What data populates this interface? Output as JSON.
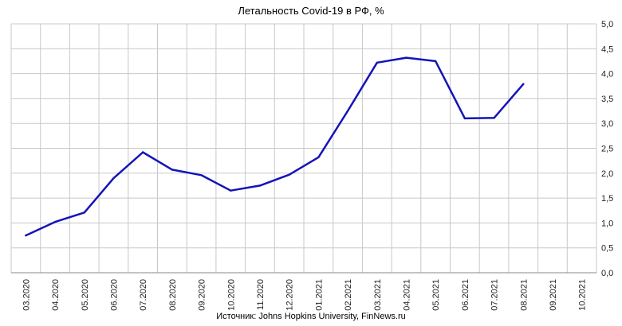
{
  "title": "Летальность Covid-19 в РФ, %",
  "source": "Источник: Johns Hopkins University, FinNews.ru",
  "colors": {
    "line": "#1414b8",
    "grid": "#c8c8c8",
    "axis": "#888888"
  },
  "chart_data": {
    "type": "line",
    "title": "Летальность Covid-19 в РФ, %",
    "categories": [
      "03.2020",
      "04.2020",
      "05.2020",
      "06.2020",
      "07.2020",
      "08.2020",
      "09.2020",
      "10.2020",
      "11.2020",
      "12.2020",
      "01.2021",
      "02.2021",
      "03.2021",
      "04.2021",
      "05.2021",
      "06.2021",
      "07.2021",
      "08.2021",
      "09.2021",
      "10.2021"
    ],
    "series": [
      {
        "values": [
          0.75,
          1.02,
          1.21,
          1.9,
          2.42,
          2.07,
          1.96,
          1.65,
          1.75,
          1.97,
          2.32,
          3.25,
          4.22,
          4.32,
          4.25,
          3.1,
          3.11,
          3.79,
          null,
          null
        ]
      }
    ],
    "ylim": [
      0,
      5
    ],
    "yticks": [
      "0,0",
      "0,5",
      "1,0",
      "1,5",
      "2,0",
      "2,5",
      "3,0",
      "3,5",
      "4,0",
      "4,5",
      "5,0"
    ],
    "y_axis_side": "right",
    "grid": true,
    "legend": "none"
  }
}
